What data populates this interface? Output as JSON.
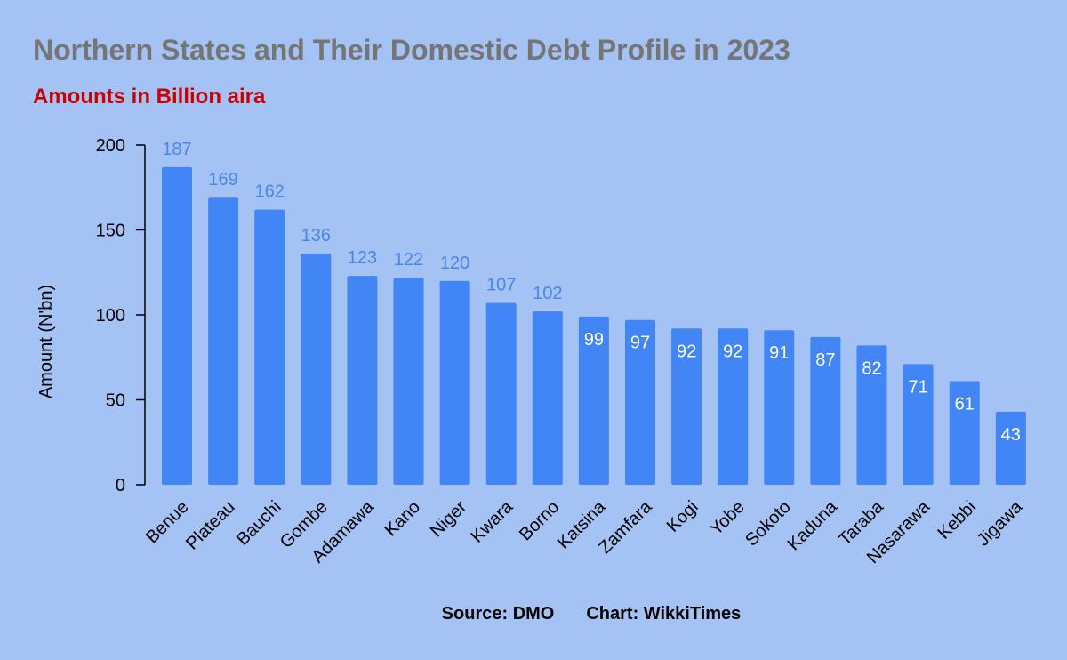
{
  "header": {
    "title": "Northern States and Their Domestic Debt Profile in 2023",
    "subtitle": "Amounts in Billion aira"
  },
  "footer": {
    "source": "Source: DMO",
    "credit": "Chart: WikkiTimes"
  },
  "colors": {
    "background": "#a4c2f4",
    "bar": "#4285f4",
    "label_outside": "#4a86e8",
    "label_inside": "#ffffff",
    "title": "#757575",
    "subtitle": "#cc0000",
    "axis": "#000000"
  },
  "chart_data": {
    "type": "bar",
    "title": "Northern States and Their Domestic Debt Profile in 2023",
    "subtitle": "Amounts in Billion aira",
    "xlabel": "",
    "ylabel": "Amount (N'bn)",
    "ylim": [
      0,
      200
    ],
    "yticks": [
      0,
      50,
      100,
      150,
      200
    ],
    "grid": false,
    "legend": "none",
    "categories": [
      "Benue",
      "Plateau",
      "Bauchi",
      "Gombe",
      "Adamawa",
      "Kano",
      "Niger",
      "Kwara",
      "Borno",
      "Katsina",
      "Zamfara",
      "Kogi",
      "Yobe",
      "Sokoto",
      "Kaduna",
      "Taraba",
      "Nasarawa",
      "Kebbi",
      "Jigawa"
    ],
    "values": [
      187,
      169,
      162,
      136,
      123,
      122,
      120,
      107,
      102,
      99,
      97,
      92,
      92,
      91,
      87,
      82,
      71,
      61,
      43
    ],
    "data_label_placement": "above bar when value >= 100, inside bar top otherwise"
  }
}
